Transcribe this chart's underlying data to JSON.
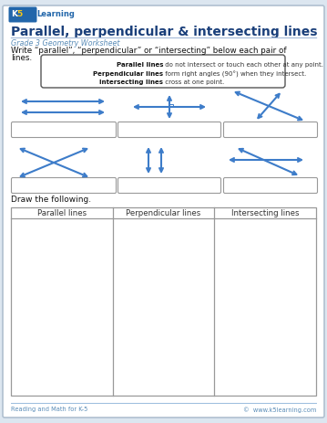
{
  "title": "Parallel, perpendicular & intersecting lines",
  "subtitle": "Grade 3 Geometry Worksheet",
  "instruction1": "Write “parallel”, “perpendicular” or “intersecting” below each pair of",
  "instruction2": "lines.",
  "info_bold": [
    "Parallel lines",
    "Perpendicular lines",
    "Intersecting lines"
  ],
  "info_rest": [
    " do not intersect or touch each other at any point.",
    " form right angles (90°) when they intersect.",
    " cross at one point."
  ],
  "draw_label": "Draw the following.",
  "draw_cols": [
    "Parallel lines",
    "Perpendicular lines",
    "Intersecting lines"
  ],
  "footer_left": "Reading and Math for K-5",
  "footer_right": "©  www.k5learning.com",
  "arrow_color": "#3d7cc9",
  "border_color": "#999999",
  "title_color": "#1a3f7a",
  "subtitle_color": "#5b8db8",
  "page_bg": "#dce6f0",
  "white": "#ffffff"
}
